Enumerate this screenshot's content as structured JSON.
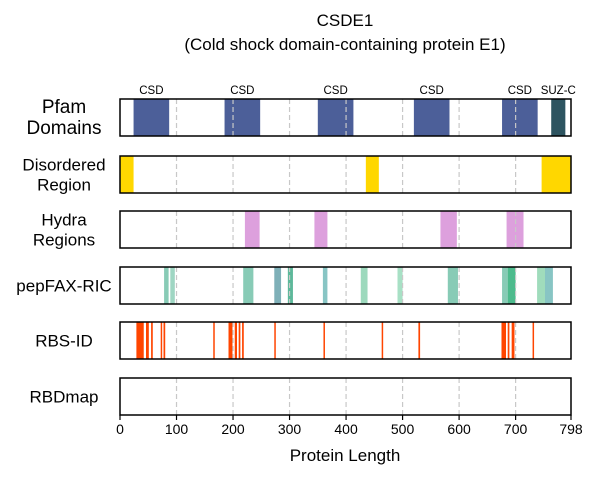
{
  "chart_data": {
    "type": "bar",
    "title_line1": "CSDE1",
    "title_line2": "(Cold shock domain-containing protein E1)",
    "xlabel": "Protein Length",
    "x_range": [
      0,
      798
    ],
    "x_ticks": [
      0,
      100,
      200,
      300,
      400,
      500,
      600,
      700,
      798
    ],
    "x_tick_labels": [
      "0",
      "100",
      "200",
      "300",
      "400",
      "500",
      "600",
      "700",
      "798"
    ],
    "gridlines": [
      100,
      200,
      300,
      400,
      500,
      600,
      700
    ],
    "tracks": [
      {
        "id": "pfam",
        "label_lines": [
          "Pfam",
          "Domains"
        ],
        "features": [
          {
            "start": 24,
            "end": 87,
            "color": "#4c5f99",
            "label": "CSD"
          },
          {
            "start": 185,
            "end": 248,
            "color": "#4c5f99",
            "label": "CSD"
          },
          {
            "start": 350,
            "end": 413,
            "color": "#4c5f99",
            "label": "CSD"
          },
          {
            "start": 520,
            "end": 583,
            "color": "#4c5f99",
            "label": "CSD"
          },
          {
            "start": 676,
            "end": 739,
            "color": "#4c5f99",
            "label": "CSD"
          },
          {
            "start": 763,
            "end": 788,
            "color": "#2d5460",
            "label": "SUZ-C"
          }
        ]
      },
      {
        "id": "disordered",
        "label_lines": [
          "Disordered",
          "Region"
        ],
        "features": [
          {
            "start": 1,
            "end": 24,
            "color": "#ffd700"
          },
          {
            "start": 435,
            "end": 458,
            "color": "#ffd700"
          },
          {
            "start": 746,
            "end": 798,
            "color": "#ffd700"
          }
        ]
      },
      {
        "id": "hydra",
        "label_lines": [
          "Hydra",
          "Regions"
        ],
        "features": [
          {
            "start": 221,
            "end": 247,
            "color": "#dda0dd"
          },
          {
            "start": 344,
            "end": 367,
            "color": "#dda0dd"
          },
          {
            "start": 567,
            "end": 596,
            "color": "#dda0dd"
          },
          {
            "start": 684,
            "end": 714,
            "color": "#dda0dd"
          }
        ]
      },
      {
        "id": "pepfax",
        "label_lines": [
          "pepFAX-RIC"
        ],
        "features": [
          {
            "start": 78,
            "end": 86,
            "color": "#88cbb6"
          },
          {
            "start": 89,
            "end": 97,
            "color": "#9fd6c3"
          },
          {
            "start": 218,
            "end": 236,
            "color": "#88cbb6"
          },
          {
            "start": 273,
            "end": 285,
            "color": "#7fb0b8"
          },
          {
            "start": 297,
            "end": 306,
            "color": "#5db89a"
          },
          {
            "start": 359,
            "end": 367,
            "color": "#88c5c4"
          },
          {
            "start": 426,
            "end": 438,
            "color": "#9dd9bd"
          },
          {
            "start": 491,
            "end": 500,
            "color": "#a8e0c5"
          },
          {
            "start": 580,
            "end": 598,
            "color": "#88cbb6"
          },
          {
            "start": 676,
            "end": 686,
            "color": "#88cbb6"
          },
          {
            "start": 686,
            "end": 700,
            "color": "#4dbb8d"
          },
          {
            "start": 738,
            "end": 752,
            "color": "#a0dcbc"
          },
          {
            "start": 752,
            "end": 766,
            "color": "#88c5c4"
          }
        ]
      },
      {
        "id": "rbsid",
        "label_lines": [
          "RBS-ID"
        ],
        "features": [
          {
            "start": 29,
            "end": 42,
            "color": "#ff4500"
          },
          {
            "start": 46,
            "end": 51,
            "color": "#ff4500"
          },
          {
            "start": 55,
            "end": 58,
            "color": "#ff4500"
          },
          {
            "start": 72,
            "end": 74,
            "color": "#ff4500"
          },
          {
            "start": 77,
            "end": 80,
            "color": "#ff4500"
          },
          {
            "start": 165,
            "end": 167,
            "color": "#ff4500"
          },
          {
            "start": 192,
            "end": 199,
            "color": "#ff4500"
          },
          {
            "start": 203,
            "end": 207,
            "color": "#ff4500"
          },
          {
            "start": 210,
            "end": 213,
            "color": "#ff4500"
          },
          {
            "start": 216,
            "end": 219,
            "color": "#ff4500"
          },
          {
            "start": 273,
            "end": 275,
            "color": "#ff4500"
          },
          {
            "start": 360,
            "end": 362,
            "color": "#ff4500"
          },
          {
            "start": 463,
            "end": 465,
            "color": "#ff4500"
          },
          {
            "start": 528,
            "end": 531,
            "color": "#ff4500"
          },
          {
            "start": 675,
            "end": 683,
            "color": "#ff4500"
          },
          {
            "start": 686,
            "end": 689,
            "color": "#ff4500"
          },
          {
            "start": 693,
            "end": 698,
            "color": "#ff4500"
          },
          {
            "start": 730,
            "end": 732,
            "color": "#ff4500"
          }
        ]
      },
      {
        "id": "rbdmap",
        "label_lines": [
          "RBDmap"
        ],
        "features": []
      }
    ]
  }
}
